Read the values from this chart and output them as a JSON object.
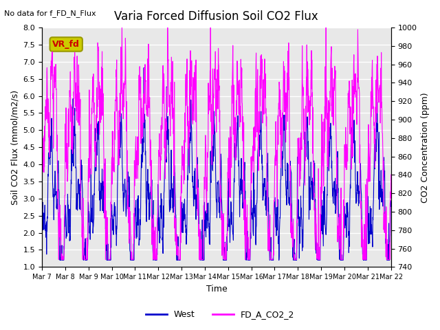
{
  "title": "Varia Forced Diffusion Soil CO2 Flux",
  "no_data_text": "No data for f_FD_N_Flux",
  "xlabel": "Time",
  "ylabel_left": "Soil CO2 Flux (mmol/m2/s)",
  "ylabel_right": "CO2 Concentration (ppm)",
  "ylim_left": [
    1.0,
    8.0
  ],
  "ylim_right": [
    740,
    1000
  ],
  "xtick_labels": [
    "Mar 7",
    "Mar 8",
    "Mar 9",
    "Mar 10",
    "Mar 11",
    "Mar 12",
    "Mar 13",
    "Mar 14",
    "Mar 15",
    "Mar 16",
    "Mar 17",
    "Mar 18",
    "Mar 19",
    "Mar 20",
    "Mar 21",
    "Mar 22"
  ],
  "bg_color": "#e8e8e8",
  "grid_color": "white",
  "west_color": "#0000cc",
  "co2_color": "#ff00ff",
  "legend_entries": [
    "West",
    "FD_A_CO2_2"
  ],
  "vr_fd_box_color": "#cccc00",
  "vr_fd_text_color": "#cc0000",
  "seed": 42
}
